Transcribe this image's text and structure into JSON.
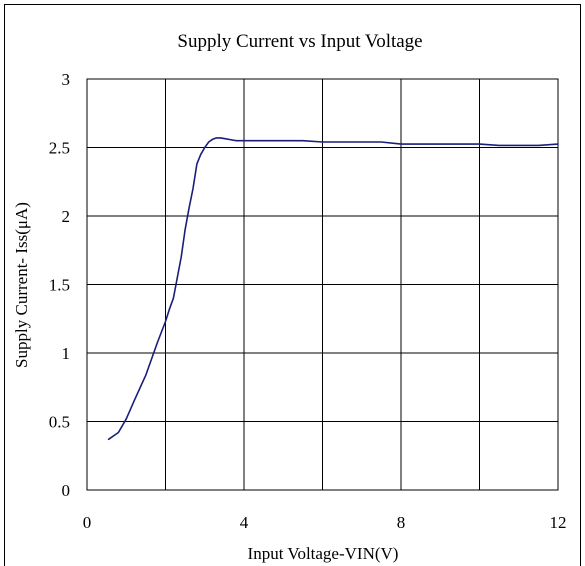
{
  "chart_data": {
    "type": "line",
    "title": "Supply Current vs Input Voltage",
    "xlabel": "Input Voltage-VIN(V)",
    "ylabel": "Supply Current- Iss(μA)",
    "xlim": [
      0,
      12
    ],
    "ylim": [
      0,
      3
    ],
    "x_ticks": [
      0,
      2,
      4,
      6,
      8,
      10,
      12
    ],
    "x_tick_labels": [
      "0",
      "",
      "4",
      "",
      "8",
      "",
      "12"
    ],
    "y_ticks": [
      0,
      0.5,
      1,
      1.5,
      2,
      2.5,
      3
    ],
    "y_tick_labels": [
      "0",
      "0.5",
      "1",
      "1.5",
      "2",
      "2.5",
      "3"
    ],
    "grid": true,
    "legend": "none",
    "series": [
      {
        "color": "#1a1f7a",
        "x": [
          0.55,
          0.8,
          1.0,
          1.2,
          1.5,
          1.8,
          2.0,
          2.1,
          2.2,
          2.3,
          2.4,
          2.5,
          2.6,
          2.7,
          2.8,
          2.9,
          3.0,
          3.05,
          3.1,
          3.2,
          3.3,
          3.4,
          3.5,
          3.7,
          3.8,
          4.0,
          4.5,
          5.0,
          5.5,
          6.0,
          6.5,
          7.0,
          7.5,
          8.0,
          9.0,
          10.0,
          10.5,
          11.0,
          11.5,
          12.0
        ],
        "y": [
          0.37,
          0.42,
          0.52,
          0.65,
          0.84,
          1.08,
          1.23,
          1.32,
          1.4,
          1.55,
          1.7,
          1.9,
          2.06,
          2.2,
          2.38,
          2.45,
          2.5,
          2.52,
          2.54,
          2.56,
          2.57,
          2.57,
          2.565,
          2.555,
          2.55,
          2.55,
          2.55,
          2.55,
          2.55,
          2.54,
          2.54,
          2.54,
          2.54,
          2.525,
          2.525,
          2.525,
          2.515,
          2.515,
          2.515,
          2.525
        ]
      }
    ]
  }
}
